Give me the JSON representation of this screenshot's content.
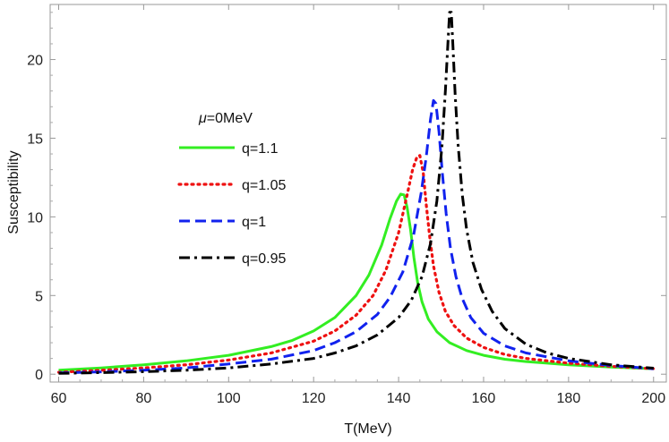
{
  "chart_data": {
    "type": "line",
    "title": "",
    "xlabel": "T(MeV)",
    "ylabel": "Susceptibility",
    "xlim": [
      58,
      203
    ],
    "ylim": [
      -0.5,
      23.5
    ],
    "xticks": [
      60,
      80,
      100,
      120,
      140,
      160,
      180,
      200
    ],
    "yticks": [
      0,
      5,
      10,
      15,
      20
    ],
    "x_tick_labels": [
      "60",
      "80",
      "100",
      "120",
      "140",
      "160",
      "180",
      "200"
    ],
    "y_tick_labels": [
      "0",
      "5",
      "10",
      "15",
      "20"
    ],
    "legend": {
      "title_symbol": "μ",
      "title_text": "=0MeV",
      "placement": "upper-left"
    },
    "series": [
      {
        "name": "q=1.1",
        "color": "#33ee22",
        "style": "solid",
        "x": [
          60,
          70,
          80,
          90,
          100,
          110,
          115,
          120,
          125,
          130,
          133,
          136,
          138,
          139.5,
          140.5,
          141.3,
          142,
          142.8,
          143.6,
          144.5,
          145.5,
          147,
          149,
          152,
          156,
          160,
          165,
          170,
          175,
          180,
          190,
          200
        ],
        "y": [
          0.25,
          0.4,
          0.6,
          0.85,
          1.2,
          1.75,
          2.15,
          2.75,
          3.6,
          5.0,
          6.3,
          8.2,
          9.9,
          11.0,
          11.45,
          11.4,
          10.6,
          9.2,
          7.4,
          5.8,
          4.6,
          3.5,
          2.7,
          2.0,
          1.5,
          1.2,
          0.95,
          0.8,
          0.7,
          0.6,
          0.45,
          0.35
        ]
      },
      {
        "name": "q=1.05",
        "color": "#ee1111",
        "style": "dotted",
        "x": [
          60,
          70,
          80,
          90,
          100,
          110,
          120,
          125,
          130,
          134,
          137,
          140,
          142,
          143.3,
          144.3,
          145,
          145.8,
          146.5,
          147.3,
          148.2,
          149.5,
          151,
          153,
          156,
          160,
          165,
          170,
          180,
          190,
          200
        ],
        "y": [
          0.12,
          0.25,
          0.4,
          0.6,
          0.9,
          1.35,
          2.1,
          2.75,
          3.75,
          5.0,
          6.6,
          9.0,
          11.4,
          13.0,
          13.8,
          13.9,
          12.8,
          10.8,
          8.8,
          6.9,
          5.2,
          4.0,
          3.1,
          2.3,
          1.7,
          1.25,
          1.0,
          0.7,
          0.5,
          0.35
        ]
      },
      {
        "name": "q=1",
        "color": "#1122ee",
        "style": "dashed",
        "x": [
          60,
          70,
          80,
          90,
          100,
          110,
          120,
          125,
          130,
          135,
          138,
          141,
          143.5,
          145.3,
          146.5,
          147.5,
          148.2,
          148.8,
          149.5,
          150.3,
          151.2,
          152.2,
          153.5,
          155,
          157,
          160,
          165,
          170,
          180,
          190,
          200
        ],
        "y": [
          0.08,
          0.15,
          0.25,
          0.4,
          0.65,
          0.95,
          1.5,
          2.0,
          2.7,
          3.8,
          4.9,
          6.5,
          8.8,
          11.5,
          13.8,
          16.2,
          17.4,
          17.2,
          15.4,
          12.8,
          10.2,
          8.0,
          6.2,
          4.8,
          3.6,
          2.6,
          1.8,
          1.35,
          0.85,
          0.55,
          0.35
        ]
      },
      {
        "name": "q=0.95",
        "color": "#000000",
        "style": "dashdot",
        "x": [
          60,
          70,
          80,
          90,
          100,
          110,
          120,
          125,
          130,
          135,
          140,
          143,
          145.5,
          147.5,
          149,
          150.2,
          151,
          151.6,
          152,
          152.4,
          152.8,
          153.3,
          154,
          155,
          156,
          157.5,
          159.5,
          162,
          165,
          170,
          175,
          180,
          190,
          200
        ],
        "y": [
          0.05,
          0.1,
          0.16,
          0.25,
          0.4,
          0.65,
          1.0,
          1.35,
          1.8,
          2.5,
          3.6,
          4.7,
          6.2,
          8.3,
          11.0,
          14.5,
          18.0,
          21.0,
          23.0,
          23.0,
          20.8,
          17.8,
          14.6,
          11.4,
          9.2,
          7.1,
          5.4,
          4.0,
          2.9,
          1.9,
          1.35,
          1.0,
          0.6,
          0.38
        ]
      }
    ]
  }
}
